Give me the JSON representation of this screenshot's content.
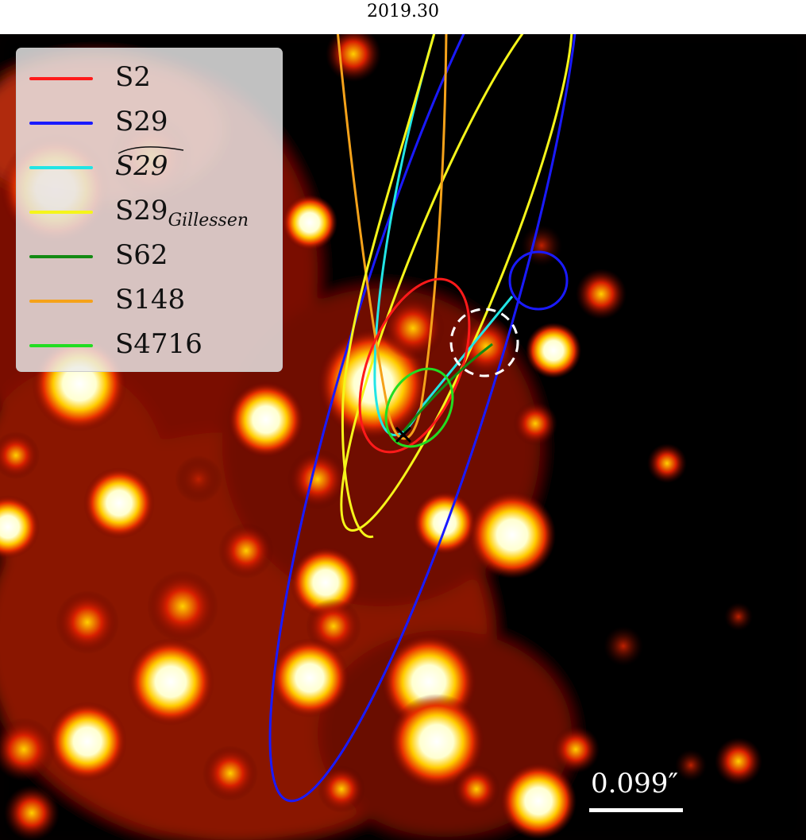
{
  "title": "2019.30",
  "legend": [
    {
      "label": "S2",
      "color": "#ff1a1a"
    },
    {
      "label": "S29",
      "color": "#1a1aff"
    },
    {
      "label": "S29",
      "accent": "~",
      "color": "#22e5e5"
    },
    {
      "label": "S29",
      "subscript": "Gillessen",
      "color": "#f5f51a"
    },
    {
      "label": "S62",
      "color": "#138a13"
    },
    {
      "label": "S148",
      "color": "#f5a21a"
    },
    {
      "label": "S4716",
      "color": "#22dd22"
    }
  ],
  "scale_bar": {
    "label": "0.099″"
  },
  "image_colors": {
    "background": "#050000",
    "white_marker": "#ffffff",
    "cross_marker": "#000000"
  }
}
